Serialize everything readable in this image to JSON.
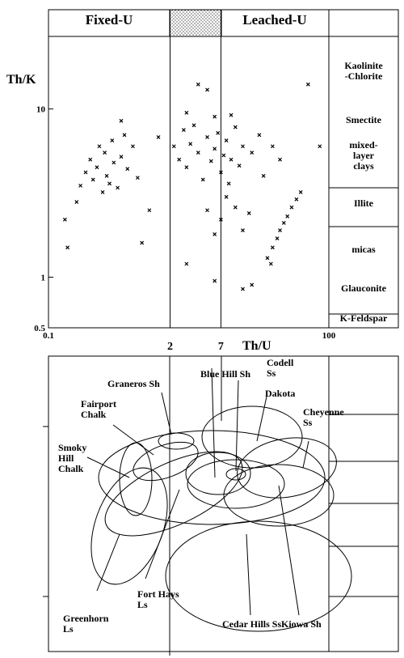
{
  "chart_data": {
    "type": "scatter",
    "x_label": "Th/U",
    "y_label": "Th/K",
    "xlog": true,
    "ylog": true,
    "xlim": [
      0.1,
      100
    ],
    "ylim": [
      0.5,
      27
    ],
    "xticks": [
      0.1,
      2,
      7,
      100
    ],
    "yticks": [
      0.5,
      1,
      10
    ],
    "color": "#000000",
    "zone_labels": [
      "Fixed-U",
      "Leached-U"
    ],
    "mineral_labels": [
      "Kaolinite\n-Chlorite",
      "Smectite",
      "mixed-\nlayer\nclays",
      "Illite",
      "micas",
      "Glauconite",
      "K-Feldspar"
    ],
    "x": [
      0.2,
      0.22,
      0.25,
      0.28,
      0.3,
      0.33,
      0.35,
      0.38,
      0.4,
      0.42,
      0.45,
      0.48,
      0.5,
      0.55,
      0.6,
      0.65,
      0.7,
      0.8,
      0.9,
      0.15,
      0.16,
      1.2,
      1.5,
      0.6,
      2.2,
      2.5,
      2.8,
      3,
      3.3,
      3.6,
      4,
      4.5,
      5,
      5.5,
      6,
      6.5,
      7,
      7.5,
      8,
      8.5,
      9,
      10,
      11,
      12,
      3,
      6,
      9,
      15,
      18,
      20,
      25,
      30,
      4,
      5,
      60,
      80,
      5,
      6,
      7,
      8,
      10,
      12,
      14,
      22,
      25,
      28,
      30,
      33,
      36,
      40,
      45,
      50,
      24,
      3,
      6,
      15,
      12,
      1
    ],
    "values": [
      2.8,
      3.5,
      4.2,
      5,
      3.8,
      4.5,
      6,
      3.2,
      5.5,
      4,
      3.6,
      6.5,
      4.8,
      3.4,
      5.2,
      7,
      4.4,
      6,
      3.9,
      2.2,
      1.5,
      2.5,
      6.8,
      8.5,
      6,
      5,
      7.5,
      4.5,
      6.2,
      8,
      5.5,
      3.8,
      6.8,
      4.9,
      5.8,
      7.2,
      4.2,
      5.3,
      6.5,
      3.6,
      5,
      7.8,
      4.6,
      6,
      9.5,
      9,
      9.2,
      5.5,
      7,
      4,
      6,
      5,
      14,
      13,
      14,
      6,
      2.5,
      1.8,
      2.2,
      3,
      2.6,
      1.9,
      2.4,
      1.3,
      1.5,
      1.7,
      1.9,
      2.1,
      2.3,
      2.6,
      2.9,
      3.2,
      1.2,
      1.2,
      0.95,
      0.9,
      0.85,
      1.6
    ]
  },
  "diagram": {
    "labels": [
      "Graneros Sh",
      "Blue Hill Sh",
      "Codell\nSs",
      "Dakota",
      "Fairport\nChalk",
      "Cheyenne\nSs",
      "Smoky\nHill\nChalk",
      "Fort Hays\nLs",
      "Greenhorn\nLs",
      "Kiowa Sh",
      "Cedar Hills Ss"
    ]
  }
}
